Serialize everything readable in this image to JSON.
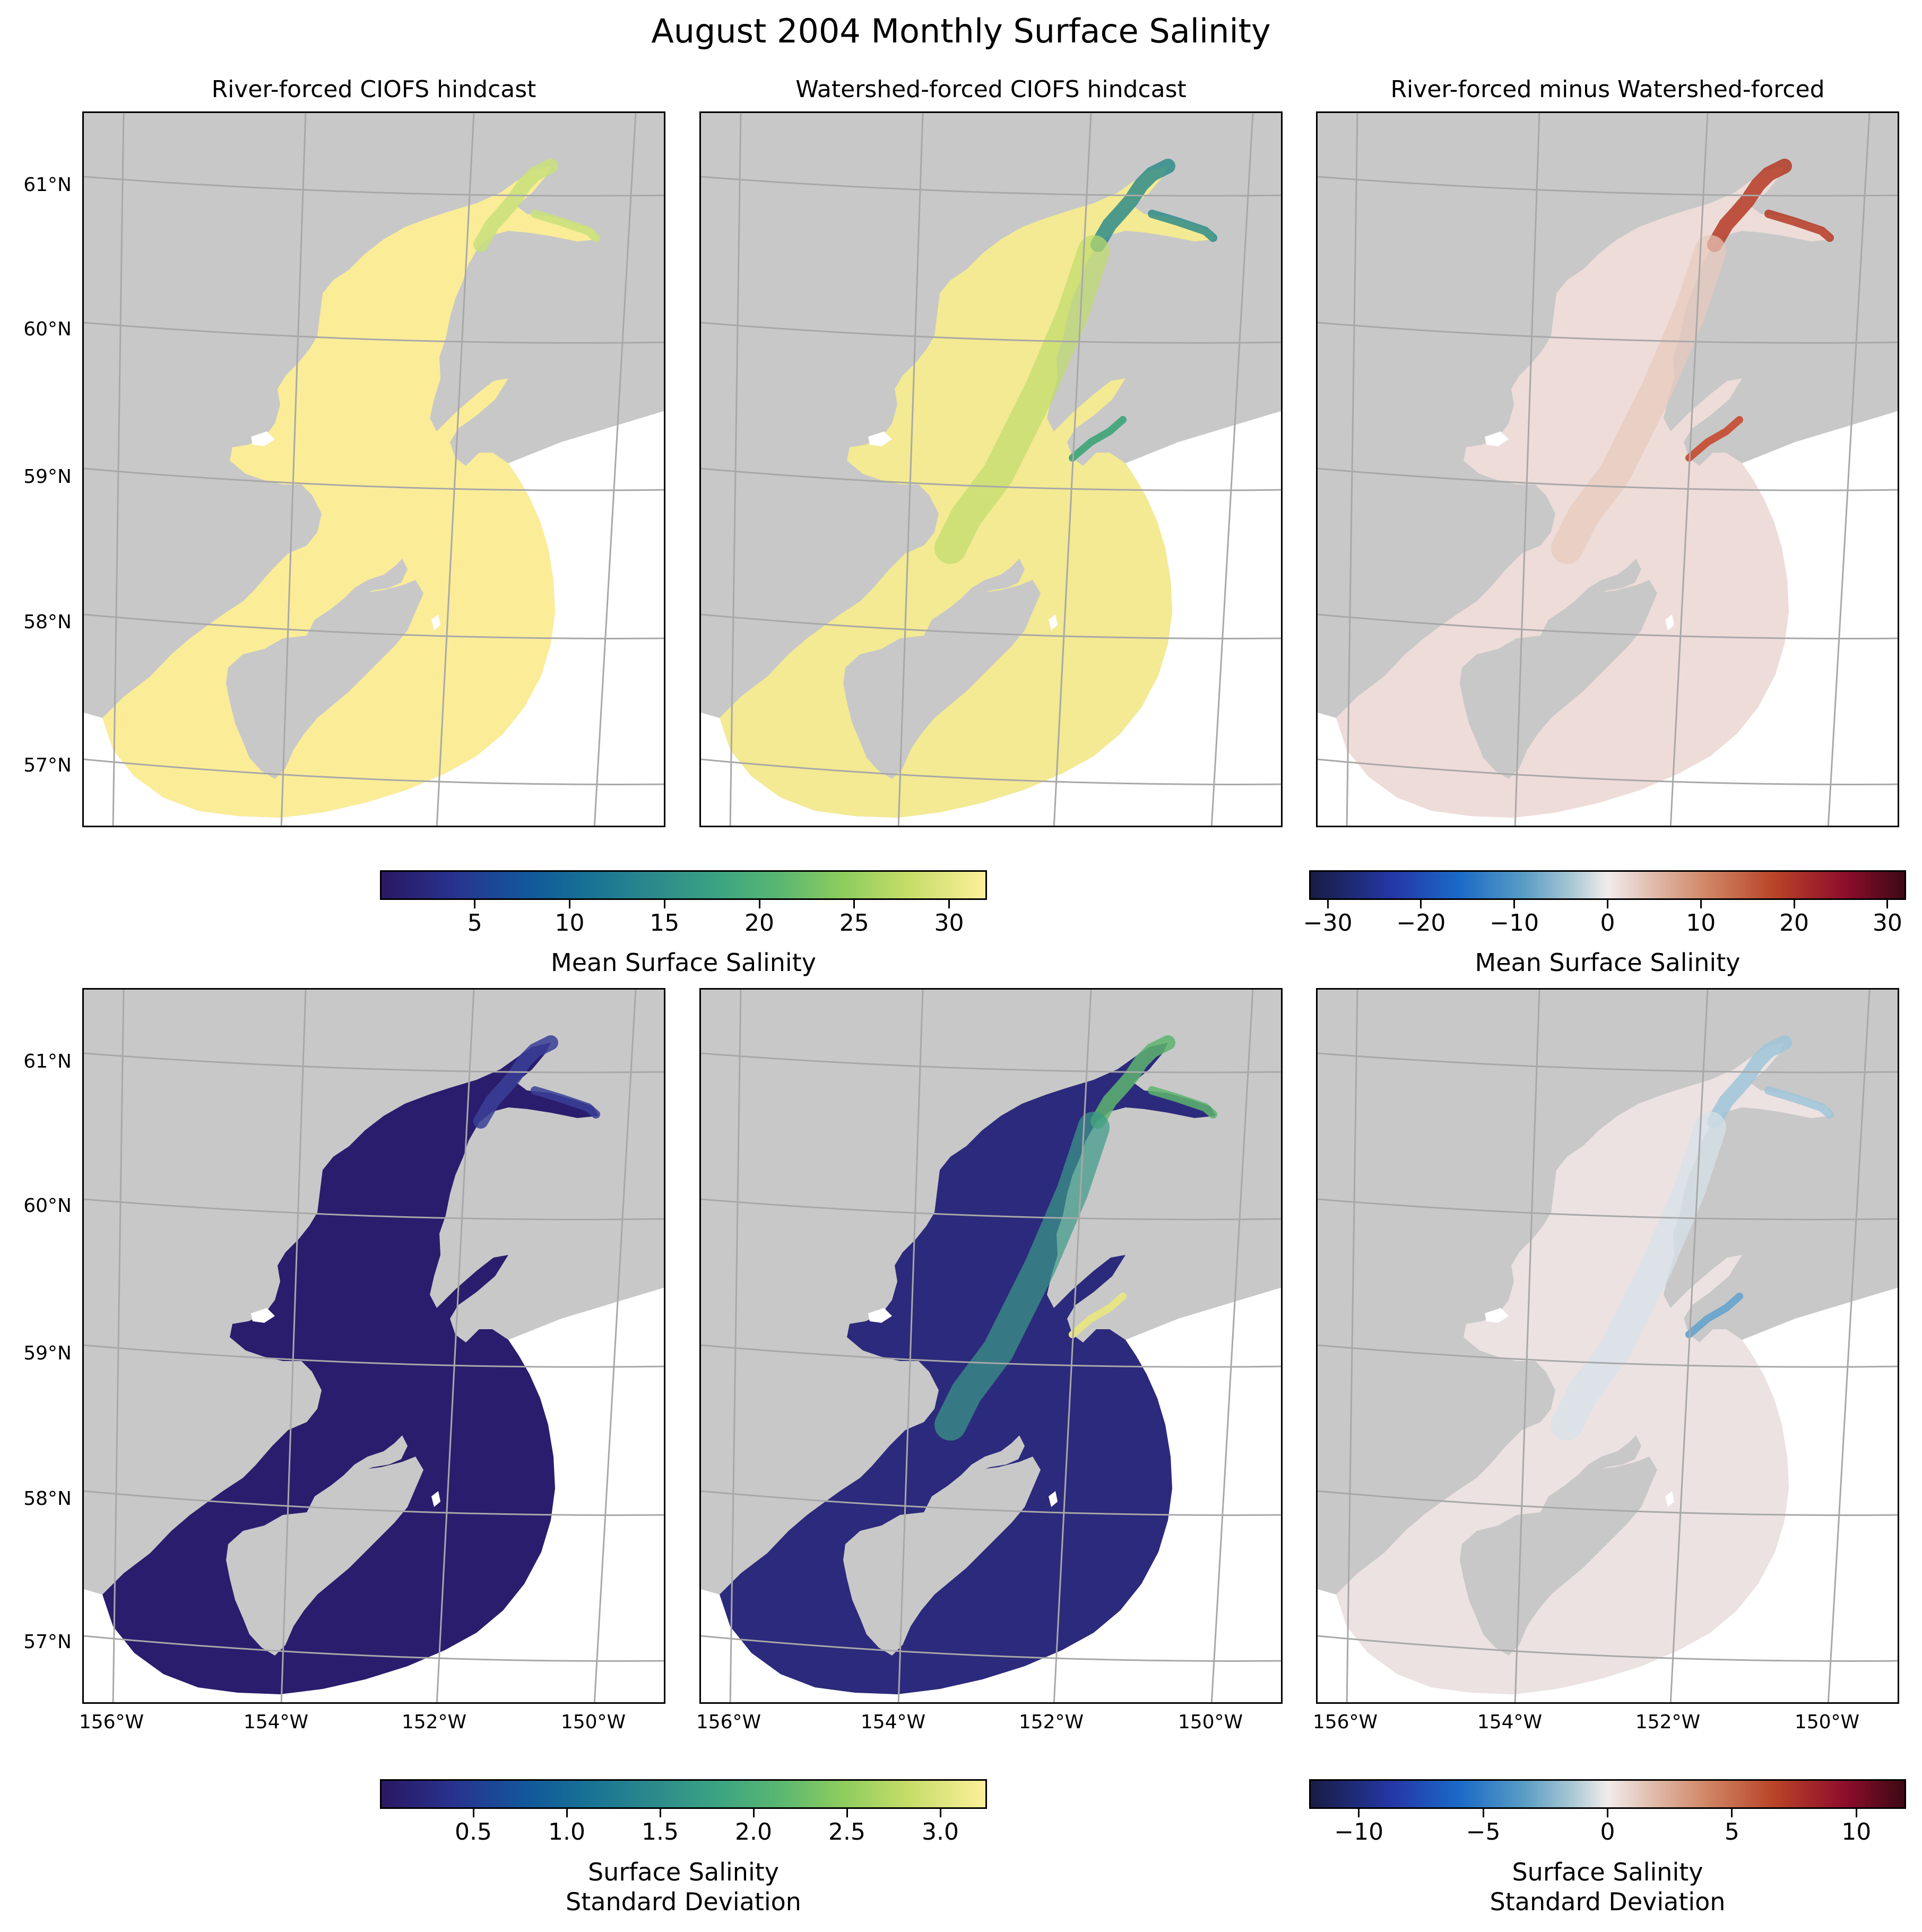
{
  "figure": {
    "title": "August 2004 Monthly Surface Salinity",
    "panel_titles": [
      "River-forced CIOFS hindcast",
      "Watershed-forced CIOFS hindcast",
      "River-forced minus Watershed-forced"
    ],
    "lat_labels": [
      "61°N",
      "60°N",
      "59°N",
      "58°N",
      "57°N"
    ],
    "lon_labels": [
      "156°W",
      "154°W",
      "152°W",
      "150°W"
    ],
    "colors": {
      "land": "#c8c8c8",
      "white": "#ffffff",
      "grid": "#a8a8a8"
    }
  },
  "colorbars": [
    {
      "id": "mean",
      "label": "Mean Surface Salinity",
      "colormap": "haline",
      "range": [
        0,
        32
      ],
      "ticks": [
        "5",
        "10",
        "15",
        "20",
        "25",
        "30"
      ],
      "tick_values": [
        5,
        10,
        15,
        20,
        25,
        30
      ]
    },
    {
      "id": "mean-diff",
      "label": "Mean Surface Salinity",
      "colormap": "balance",
      "range": [
        -32,
        32
      ],
      "ticks": [
        "−30",
        "−20",
        "−10",
        "0",
        "10",
        "20",
        "30"
      ],
      "tick_values": [
        -30,
        -20,
        -10,
        0,
        10,
        20,
        30
      ]
    },
    {
      "id": "std",
      "label_line1": "Surface Salinity",
      "label_line2": "Standard Deviation",
      "colormap": "haline",
      "range": [
        0,
        3.25
      ],
      "ticks": [
        "0.5",
        "1.0",
        "1.5",
        "2.0",
        "2.5",
        "3.0"
      ],
      "tick_values": [
        0.5,
        1.0,
        1.5,
        2.0,
        2.5,
        3.0
      ]
    },
    {
      "id": "std-diff",
      "label_line1": "Surface Salinity",
      "label_line2": "Standard Deviation",
      "colormap": "balance",
      "range": [
        -12,
        12
      ],
      "ticks": [
        "−10",
        "−5",
        "0",
        "5",
        "10"
      ],
      "tick_values": [
        -10,
        -5,
        0,
        5,
        10
      ]
    }
  ],
  "panels": [
    {
      "id": "mean-river",
      "field": "mean surface salinity, river-forced",
      "colormap": "haline"
    },
    {
      "id": "mean-watershed",
      "field": "mean surface salinity, watershed-forced",
      "colormap": "haline"
    },
    {
      "id": "mean-diff",
      "field": "mean surface salinity difference",
      "colormap": "balance"
    },
    {
      "id": "std-river",
      "field": "surface salinity standard deviation, river-forced",
      "colormap": "haline"
    },
    {
      "id": "std-watershed",
      "field": "surface salinity standard deviation, watershed-forced",
      "colormap": "haline"
    },
    {
      "id": "std-diff",
      "field": "surface salinity standard deviation difference",
      "colormap": "balance"
    }
  ]
}
